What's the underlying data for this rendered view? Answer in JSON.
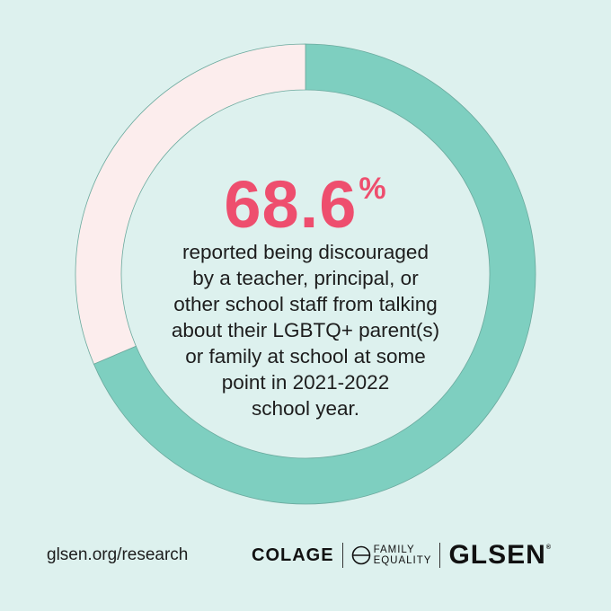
{
  "chart_data": {
    "type": "pie",
    "variant": "donut",
    "slices": [
      {
        "label": "reported being discouraged",
        "value": 68.6,
        "color": "#7ECFC0"
      },
      {
        "label": "",
        "value": 31.4,
        "color": "#FCEDED"
      }
    ]
  },
  "stat": {
    "value": "68.6",
    "unit": "%"
  },
  "description": [
    "reported being discouraged",
    "by a teacher, principal, or",
    "other school staff from talking",
    "about their LGBTQ+ parent(s)",
    "or family at school at some",
    "point in 2021-2022",
    "school year."
  ],
  "footer": {
    "url": "glsen.org/research",
    "logos": {
      "colage": "COLAGE",
      "family_equality_1": "FAMILY",
      "family_equality_2": "EQUALITY",
      "glsen": "GLSEN",
      "reg": "®"
    }
  },
  "colors": {
    "background": "#DDF1EE",
    "accent": "#EE4E6E",
    "ring_main": "#7ECFC0",
    "ring_rest": "#FCEDED"
  }
}
